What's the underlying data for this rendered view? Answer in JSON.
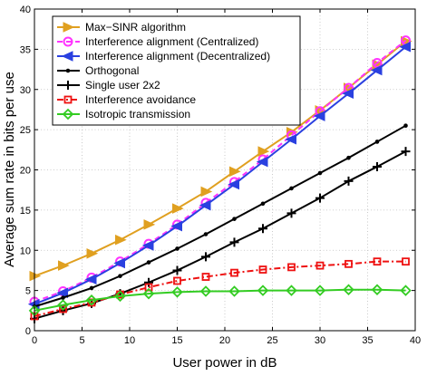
{
  "chart_data": {
    "type": "line",
    "xlabel": "User power  in dB",
    "ylabel": "Average sum rate in bits per use",
    "xlim": [
      0,
      40
    ],
    "ylim": [
      0,
      40
    ],
    "xticks": [
      0,
      5,
      10,
      15,
      20,
      25,
      30,
      35,
      40
    ],
    "yticks": [
      0,
      5,
      10,
      15,
      20,
      25,
      30,
      35,
      40
    ],
    "grid": true,
    "legend_position": "top-left",
    "series": [
      {
        "name": "Max−SINR algorithm",
        "color": "#e0a020",
        "marker": "triangle-right",
        "dash": "solid",
        "x": [
          0,
          3,
          6,
          9,
          12,
          15,
          18,
          21,
          24,
          27,
          30,
          33,
          36,
          39
        ],
        "y": [
          6.8,
          8.1,
          9.6,
          11.3,
          13.2,
          15.2,
          17.3,
          19.8,
          22.3,
          24.7,
          27.4,
          30.2,
          33.1,
          36.0
        ]
      },
      {
        "name": "Interference alignment (Centralized)",
        "color": "#ff33ff",
        "marker": "circle",
        "dash": "dashed",
        "x": [
          0,
          3,
          6,
          9,
          12,
          15,
          18,
          21,
          24,
          27,
          30,
          33,
          36,
          39
        ],
        "y": [
          3.6,
          4.9,
          6.6,
          8.6,
          10.8,
          13.2,
          15.9,
          18.5,
          21.3,
          24.3,
          27.3,
          30.2,
          33.3,
          36.1
        ]
      },
      {
        "name": "Interference alignment  (Decentralized)",
        "color": "#2a40e0",
        "marker": "triangle-left",
        "dash": "solid",
        "x": [
          0,
          3,
          6,
          9,
          12,
          15,
          18,
          21,
          24,
          27,
          30,
          33,
          36,
          39
        ],
        "y": [
          3.3,
          4.7,
          6.4,
          8.4,
          10.6,
          13.0,
          15.6,
          18.2,
          21.0,
          23.8,
          26.7,
          29.5,
          32.4,
          35.3
        ]
      },
      {
        "name": "Orthogonal",
        "color": "#000000",
        "marker": "dot",
        "dash": "solid",
        "x": [
          0,
          3,
          6,
          9,
          12,
          15,
          18,
          21,
          24,
          27,
          30,
          33,
          36,
          39
        ],
        "y": [
          3.0,
          4.1,
          5.3,
          6.8,
          8.5,
          10.2,
          12.0,
          13.9,
          15.8,
          17.7,
          19.6,
          21.5,
          23.5,
          25.5
        ]
      },
      {
        "name": "Single user 2x2",
        "color": "#000000",
        "marker": "plus",
        "dash": "solid",
        "x": [
          0,
          3,
          6,
          9,
          12,
          15,
          18,
          21,
          24,
          27,
          30,
          33,
          36,
          39
        ],
        "y": [
          1.5,
          2.5,
          3.4,
          4.6,
          6.0,
          7.5,
          9.2,
          11.0,
          12.7,
          14.6,
          16.5,
          18.6,
          20.4,
          22.3
        ]
      },
      {
        "name": "Interference avoidance",
        "color": "#ee1111",
        "marker": "square",
        "dash": "dashdot",
        "x": [
          0,
          3,
          6,
          9,
          12,
          15,
          18,
          21,
          24,
          27,
          30,
          33,
          36,
          39
        ],
        "y": [
          1.8,
          2.7,
          3.5,
          4.5,
          5.4,
          6.2,
          6.7,
          7.2,
          7.6,
          7.9,
          8.1,
          8.3,
          8.6,
          8.6
        ]
      },
      {
        "name": "Isotropic transmission",
        "color": "#33cc22",
        "marker": "diamond",
        "dash": "solid",
        "x": [
          0,
          3,
          6,
          9,
          12,
          15,
          18,
          21,
          24,
          27,
          30,
          33,
          36,
          39
        ],
        "y": [
          2.5,
          3.2,
          3.8,
          4.3,
          4.6,
          4.8,
          4.9,
          4.9,
          5.0,
          5.0,
          5.0,
          5.1,
          5.1,
          5.0
        ]
      }
    ]
  }
}
